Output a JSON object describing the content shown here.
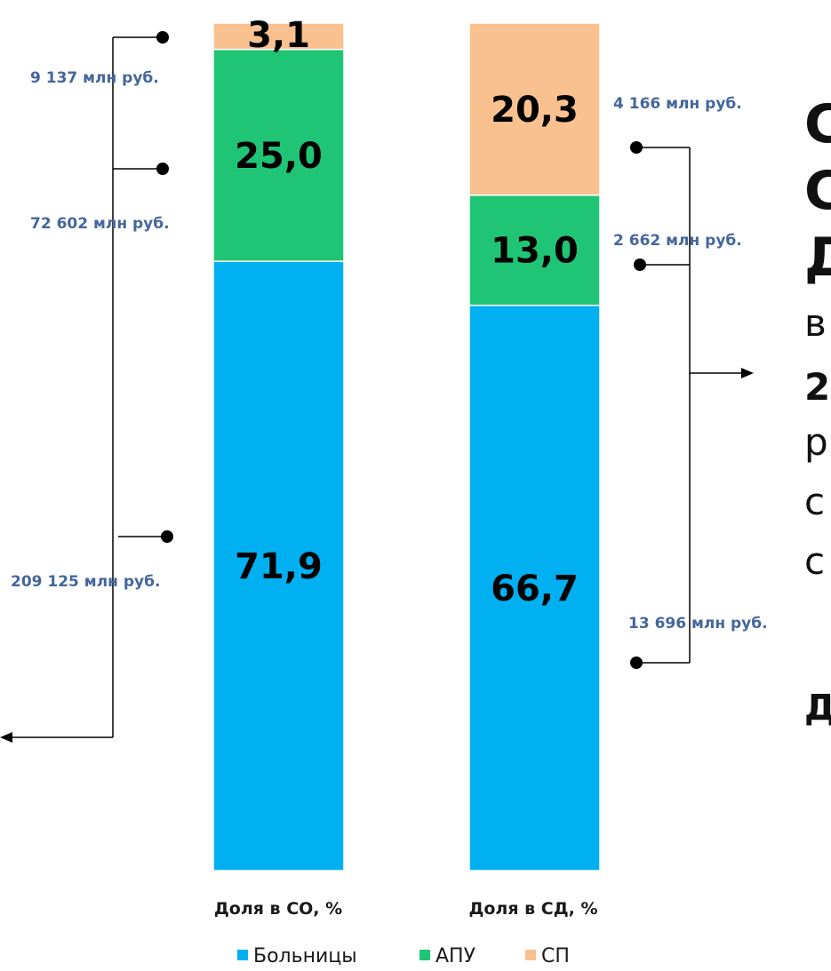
{
  "colors": {
    "hospitals": "#00b0f0",
    "apu": "#1fc574",
    "sp": "#f8c18f",
    "annotation": "#44679c",
    "highlight": "#e00000"
  },
  "chart_data": {
    "type": "bar",
    "stacked": true,
    "categories": [
      "Доля в СО, %",
      "Доля в СД, %"
    ],
    "series": [
      {
        "name": "Больницы",
        "values": [
          71.9,
          66.7
        ],
        "labels": [
          "71,9",
          "66,7"
        ]
      },
      {
        "name": "АПУ",
        "values": [
          25.0,
          13.0
        ],
        "labels": [
          "25,0",
          "13,0"
        ]
      },
      {
        "name": "СП",
        "values": [
          3.1,
          20.3
        ],
        "labels": [
          "3,1",
          "20,3"
        ]
      }
    ],
    "ylim": [
      0,
      100
    ],
    "legend_position": "bottom",
    "annotations": {
      "left": [
        "9 137 млн руб.",
        "72 602 млн руб.",
        "209 125 млн руб."
      ],
      "right": [
        "4 166 млн руб.",
        "2 662 млн руб.",
        "13 696 млн руб."
      ]
    }
  },
  "right_text": {
    "line1": "С",
    "line2": "С",
    "line3": "Д",
    "line4": "в",
    "line5": "2",
    "line6": "р",
    "line7": "с",
    "line8": "с",
    "line9": "Д"
  },
  "legend_title_empty": ""
}
